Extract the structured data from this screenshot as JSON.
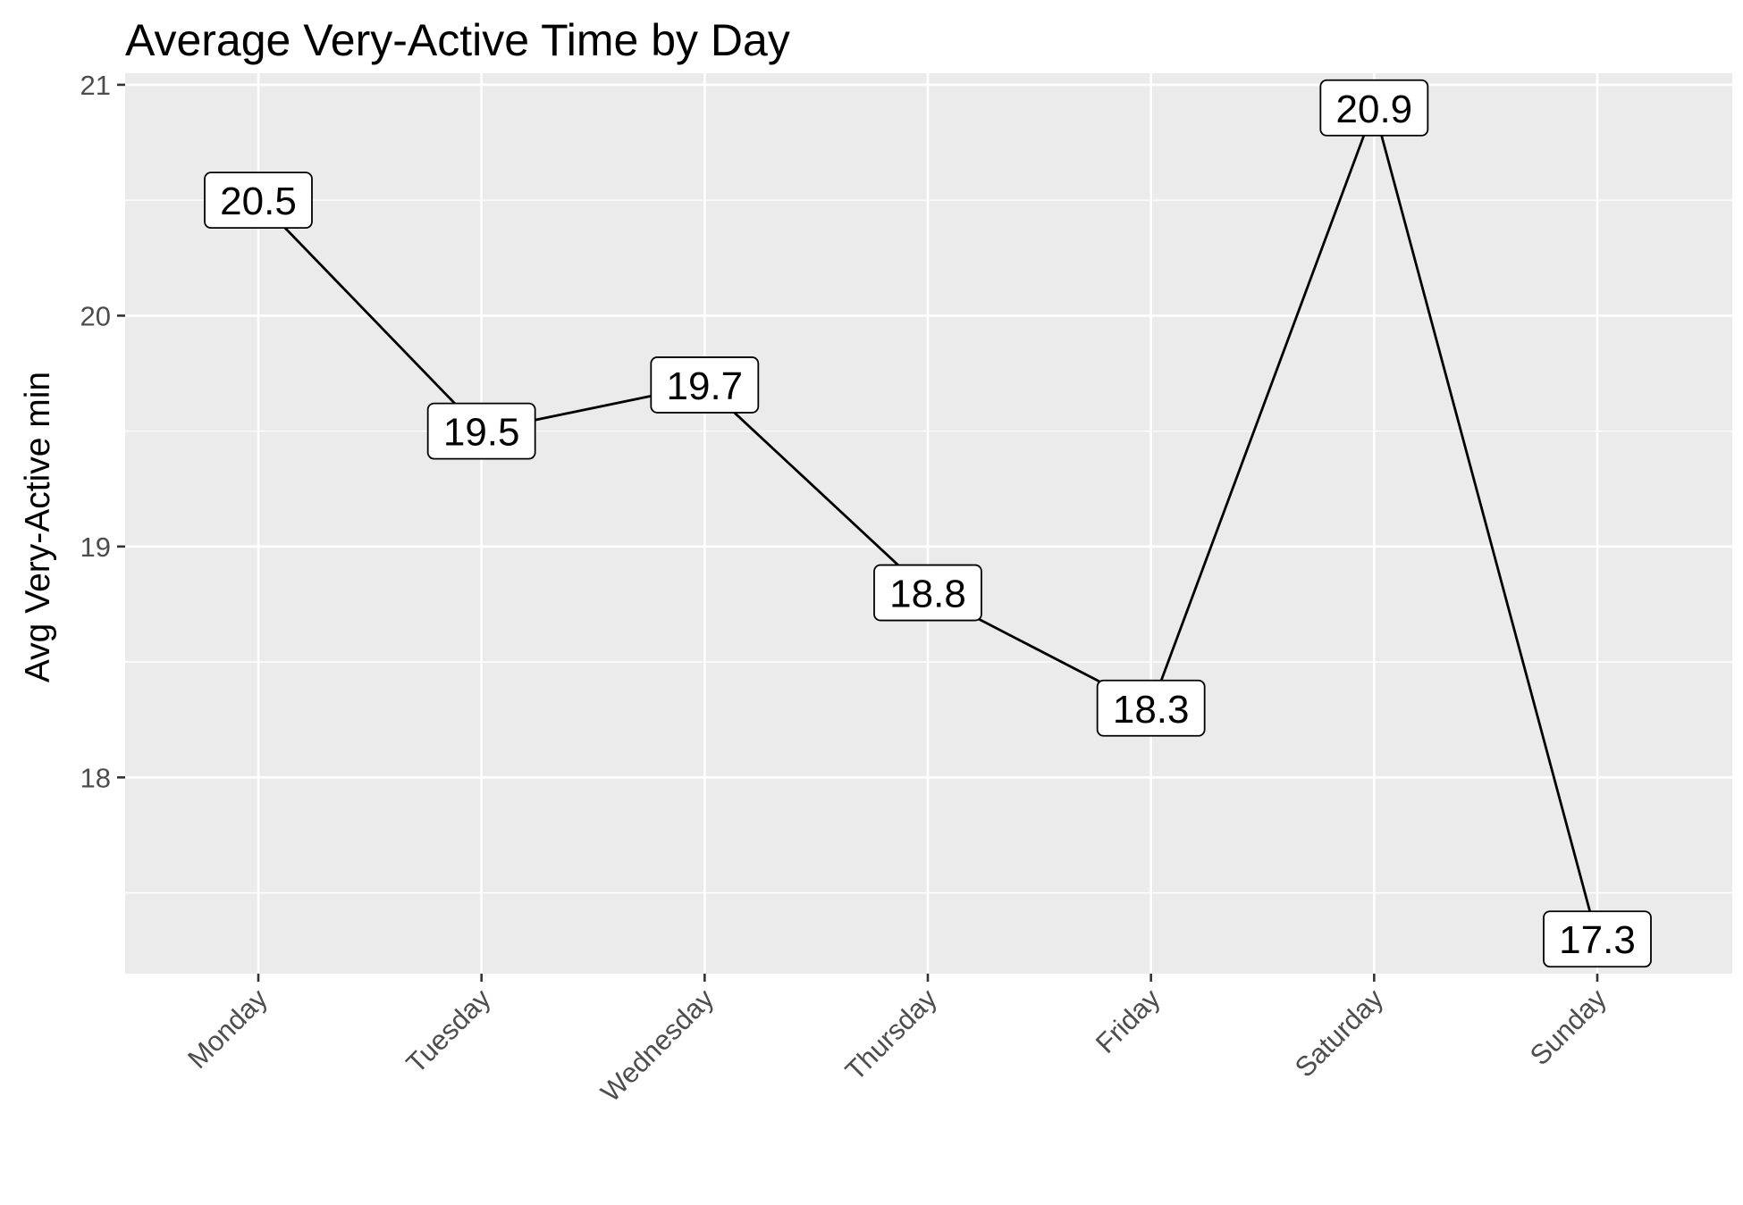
{
  "chart_data": {
    "type": "line",
    "title": "Average Very-Active Time by Day",
    "xlabel": "",
    "ylabel": "Avg Very-Active min",
    "categories": [
      "Monday",
      "Tuesday",
      "Wednesday",
      "Thursday",
      "Friday",
      "Saturday",
      "Sunday"
    ],
    "values": [
      20.5,
      19.5,
      19.7,
      18.8,
      18.3,
      20.9,
      17.3
    ],
    "data_labels": [
      "20.5",
      "19.5",
      "19.7",
      "18.8",
      "18.3",
      "20.9",
      "17.3"
    ],
    "y_ticks": [
      18,
      19,
      20,
      21
    ],
    "y_tick_labels": [
      "18",
      "19",
      "20",
      "21"
    ],
    "ylim": [
      17.15,
      21.05
    ],
    "grid": true,
    "legend": "none",
    "colors": {
      "panel_background": "#ebebeb",
      "grid_line": "#ffffff",
      "series_line": "#000000",
      "label_fill": "#ffffff",
      "label_border": "#000000",
      "tick_text": "#4d4d4d"
    }
  }
}
